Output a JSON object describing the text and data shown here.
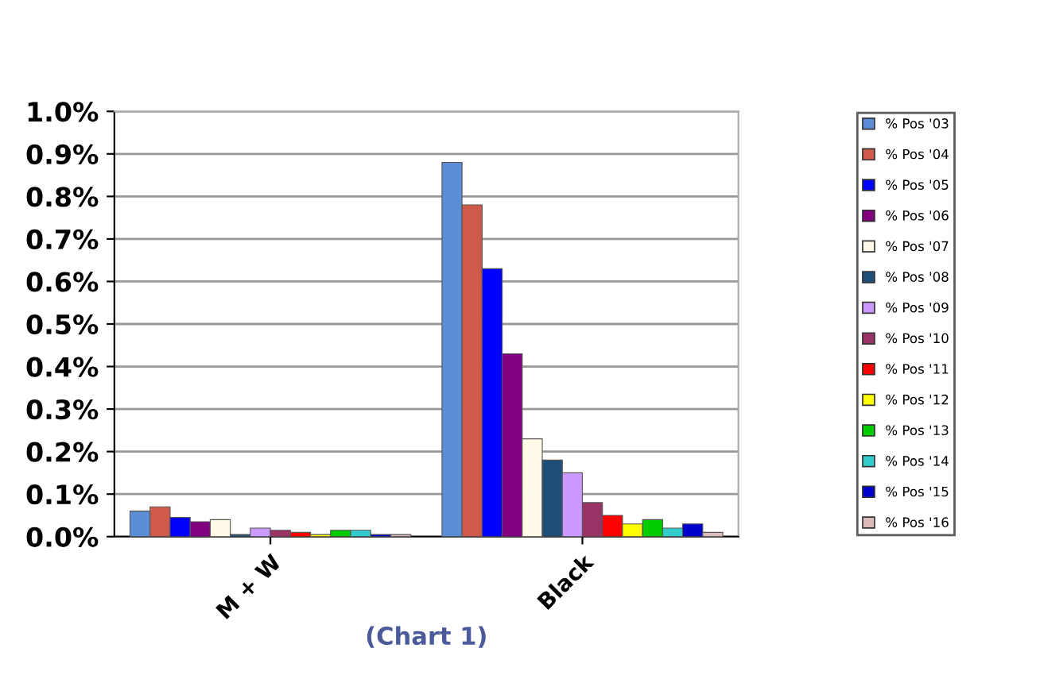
{
  "chart_data": {
    "type": "bar",
    "categories": [
      "M + W",
      "Black"
    ],
    "series": [
      {
        "name": "% Pos '03",
        "color": "#5b8ed6",
        "values": [
          0.06,
          0.88
        ]
      },
      {
        "name": "% Pos '04",
        "color": "#d05a4a",
        "values": [
          0.07,
          0.78
        ]
      },
      {
        "name": "% Pos '05",
        "color": "#0000ff",
        "values": [
          0.045,
          0.63
        ]
      },
      {
        "name": "% Pos '06",
        "color": "#800080",
        "values": [
          0.035,
          0.43
        ]
      },
      {
        "name": "% Pos '07",
        "color": "#fffbe8",
        "values": [
          0.04,
          0.23
        ]
      },
      {
        "name": "% Pos '08",
        "color": "#1f4e79",
        "values": [
          0.005,
          0.18
        ]
      },
      {
        "name": "% Pos '09",
        "color": "#cc99ff",
        "values": [
          0.02,
          0.15
        ]
      },
      {
        "name": "% Pos '10",
        "color": "#993366",
        "values": [
          0.015,
          0.08
        ]
      },
      {
        "name": "% Pos '11",
        "color": "#ff0000",
        "values": [
          0.01,
          0.05
        ]
      },
      {
        "name": "% Pos '12",
        "color": "#ffff00",
        "values": [
          0.005,
          0.03
        ]
      },
      {
        "name": "% Pos '13",
        "color": "#00cc00",
        "values": [
          0.015,
          0.04
        ]
      },
      {
        "name": "% Pos '14",
        "color": "#33cccc",
        "values": [
          0.015,
          0.02
        ]
      },
      {
        "name": "% Pos '15",
        "color": "#0000cc",
        "values": [
          0.005,
          0.03
        ]
      },
      {
        "name": "% Pos '16",
        "color": "#ddbbbb",
        "values": [
          0.005,
          0.01
        ]
      }
    ],
    "ylim": [
      0,
      1.0
    ],
    "yticks": [
      {
        "value": 0,
        "label": "0.0%"
      },
      {
        "value": 0.1,
        "label": "0.1%"
      },
      {
        "value": 0.2,
        "label": "0.2%"
      },
      {
        "value": 0.3,
        "label": "0.3%"
      },
      {
        "value": 0.4,
        "label": "0.4%"
      },
      {
        "value": 0.5,
        "label": "0.5%"
      },
      {
        "value": 0.6,
        "label": "0.6%"
      },
      {
        "value": 0.7,
        "label": "0.7%"
      },
      {
        "value": 0.8,
        "label": "0.8%"
      },
      {
        "value": 0.9,
        "label": "0.9%"
      },
      {
        "value": 1.0,
        "label": "1.0%"
      }
    ],
    "grid": "y",
    "legend": "right",
    "annotations": [
      "(Chart 1)"
    ]
  }
}
